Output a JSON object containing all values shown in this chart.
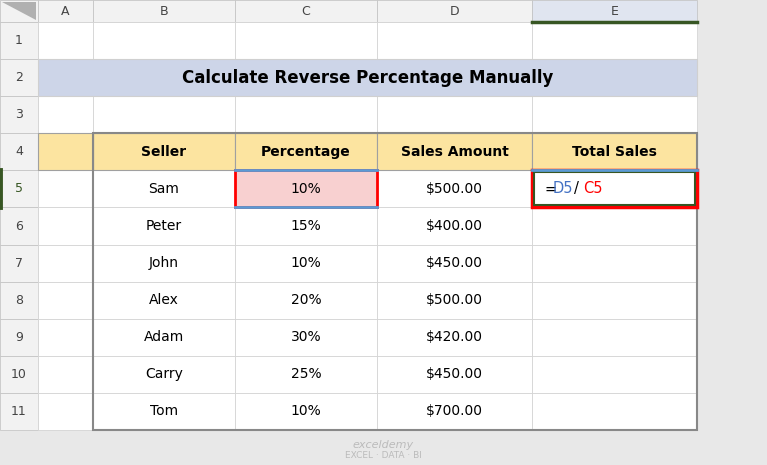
{
  "title": "Calculate Reverse Percentage Manually",
  "title_bg": "#cdd5e8",
  "col_headers": [
    "Seller",
    "Percentage",
    "Sales Amount",
    "Total Sales"
  ],
  "header_bg": "#fce4a0",
  "rows": [
    [
      "Sam",
      "10%",
      "$500.00",
      "=D5/C5"
    ],
    [
      "Peter",
      "15%",
      "$400.00",
      ""
    ],
    [
      "John",
      "10%",
      "$450.00",
      ""
    ],
    [
      "Alex",
      "20%",
      "$500.00",
      ""
    ],
    [
      "Adam",
      "30%",
      "$420.00",
      ""
    ],
    [
      "Carry",
      "25%",
      "$450.00",
      ""
    ],
    [
      "Tom",
      "10%",
      "$700.00",
      ""
    ]
  ],
  "col_labels": [
    "A",
    "B",
    "C",
    "D",
    "E"
  ],
  "row_labels": [
    "1",
    "2",
    "3",
    "4",
    "5",
    "6",
    "7",
    "8",
    "9",
    "10",
    "11"
  ],
  "spreadsheet_bg": "#ffffff",
  "row_label_bg": "#f2f2f2",
  "col_label_bg": "#f2f2f2",
  "col_E_selected_bg": "#e0e5f0",
  "row_5_label_bg": "#c5c5c5",
  "cell_border": "#d0d0d0",
  "outer_border": "#888888",
  "formula_eq_color": "#000000",
  "formula_blue": "#4472c4",
  "formula_slash_color": "#000000",
  "formula_red": "#ff0000",
  "highlight_cell_C5_bg": "#f8d0d0",
  "highlight_border_red": "#ff0000",
  "highlight_border_blue": "#5b9bd5",
  "highlight_border_green": "#375623",
  "col_E_header_bottom": "#375623",
  "row_5_sidebar": "#375623",
  "watermark_color": "#bbbbbb",
  "figsize": [
    7.67,
    4.65
  ],
  "dpi": 100
}
